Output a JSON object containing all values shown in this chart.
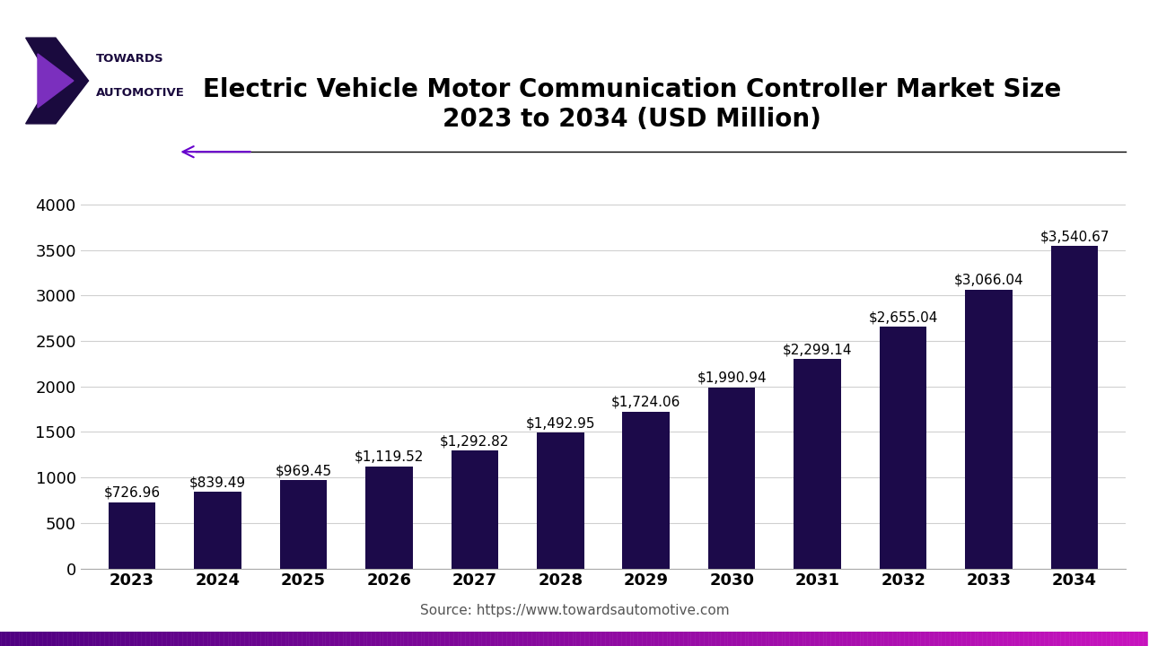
{
  "title": "Electric Vehicle Motor Communication Controller Market Size\n2023 to 2034 (USD Million)",
  "years": [
    2023,
    2024,
    2025,
    2026,
    2027,
    2028,
    2029,
    2030,
    2031,
    2032,
    2033,
    2034
  ],
  "values": [
    726.96,
    839.49,
    969.45,
    1119.52,
    1292.82,
    1492.95,
    1724.06,
    1990.94,
    2299.14,
    2655.04,
    3066.04,
    3540.67
  ],
  "labels": [
    "$726.96",
    "$839.49",
    "$969.45",
    "$1,119.52",
    "$1,292.82",
    "$1,492.95",
    "$1,724.06",
    "$1,990.94",
    "$2,299.14",
    "$2,655.04",
    "$3,066.04",
    "$3,540.67"
  ],
  "bar_color": "#1c0a4a",
  "title_fontsize": 20,
  "tick_fontsize": 13,
  "value_label_fontsize": 11,
  "source_text": "Source: https://www.towardsautomotive.com",
  "ylim": [
    0,
    4400
  ],
  "yticks": [
    0,
    500,
    1000,
    1500,
    2000,
    2500,
    3000,
    3500,
    4000
  ],
  "bg_color": "#ffffff",
  "grid_color": "#d0d0d0",
  "arrow_color": "#6600cc",
  "logo_dark": "#1a0a3e",
  "logo_purple": "#7b2fbe"
}
